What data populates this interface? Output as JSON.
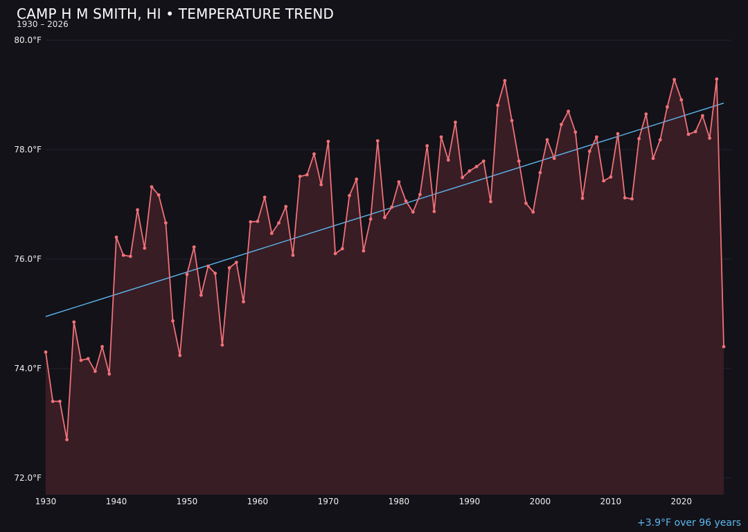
{
  "header": {
    "title": "CAMP H M SMITH, HI • TEMPERATURE TREND",
    "subtitle": "1930 – 2026"
  },
  "trend_note": "+3.9°F over 96 years",
  "colors": {
    "background": "#131218",
    "line": "#f07178",
    "area_fill": "#3a1f26",
    "trend": "#5cb8f0",
    "grid": "#24232b",
    "tick_text": "#f0f0f0"
  },
  "chart_data": {
    "type": "line",
    "title": "CAMP H M SMITH, HI • TEMPERATURE TREND",
    "subtitle": "1930 – 2026",
    "xlabel": "",
    "ylabel": "",
    "xlim": [
      1930,
      2026
    ],
    "ylim": [
      71.7,
      80.0
    ],
    "grid": true,
    "x_ticks": [
      1930,
      1940,
      1950,
      1960,
      1970,
      1980,
      1990,
      2000,
      2010,
      2020
    ],
    "y_ticks": [
      72.0,
      74.0,
      76.0,
      78.0,
      80.0
    ],
    "y_tick_labels": [
      "72.0°F",
      "74.0°F",
      "76.0°F",
      "78.0°F",
      "80.0°F"
    ],
    "series": [
      {
        "values": [
          {
            "x": 1930,
            "y": 74.3
          },
          {
            "x": 1931,
            "y": 73.4
          },
          {
            "x": 1932,
            "y": 73.4
          },
          {
            "x": 1933,
            "y": 72.7
          },
          {
            "x": 1934,
            "y": 74.85
          },
          {
            "x": 1935,
            "y": 74.15
          },
          {
            "x": 1936,
            "y": 74.18
          },
          {
            "x": 1937,
            "y": 73.95
          },
          {
            "x": 1938,
            "y": 74.4
          },
          {
            "x": 1939,
            "y": 73.9
          },
          {
            "x": 1940,
            "y": 76.4
          },
          {
            "x": 1941,
            "y": 76.07
          },
          {
            "x": 1942,
            "y": 76.05
          },
          {
            "x": 1943,
            "y": 76.9
          },
          {
            "x": 1944,
            "y": 76.2
          },
          {
            "x": 1945,
            "y": 77.32
          },
          {
            "x": 1946,
            "y": 77.17
          },
          {
            "x": 1947,
            "y": 76.66
          },
          {
            "x": 1948,
            "y": 74.87
          },
          {
            "x": 1949,
            "y": 74.24
          },
          {
            "x": 1950,
            "y": 75.72
          },
          {
            "x": 1951,
            "y": 76.22
          },
          {
            "x": 1952,
            "y": 75.34
          },
          {
            "x": 1953,
            "y": 75.87
          },
          {
            "x": 1954,
            "y": 75.74
          },
          {
            "x": 1955,
            "y": 74.43
          },
          {
            "x": 1956,
            "y": 75.84
          },
          {
            "x": 1957,
            "y": 75.94
          },
          {
            "x": 1958,
            "y": 75.22
          },
          {
            "x": 1959,
            "y": 76.68
          },
          {
            "x": 1960,
            "y": 76.69
          },
          {
            "x": 1961,
            "y": 77.13
          },
          {
            "x": 1962,
            "y": 76.47
          },
          {
            "x": 1963,
            "y": 76.66
          },
          {
            "x": 1964,
            "y": 76.96
          },
          {
            "x": 1965,
            "y": 76.07
          },
          {
            "x": 1966,
            "y": 77.51
          },
          {
            "x": 1967,
            "y": 77.54
          },
          {
            "x": 1968,
            "y": 77.92
          },
          {
            "x": 1969,
            "y": 77.36
          },
          {
            "x": 1970,
            "y": 78.15
          },
          {
            "x": 1971,
            "y": 76.1
          },
          {
            "x": 1972,
            "y": 76.19
          },
          {
            "x": 1973,
            "y": 77.16
          },
          {
            "x": 1974,
            "y": 77.46
          },
          {
            "x": 1975,
            "y": 76.15
          },
          {
            "x": 1976,
            "y": 76.73
          },
          {
            "x": 1977,
            "y": 78.16
          },
          {
            "x": 1978,
            "y": 76.76
          },
          {
            "x": 1979,
            "y": 76.95
          },
          {
            "x": 1980,
            "y": 77.41
          },
          {
            "x": 1981,
            "y": 77.06
          },
          {
            "x": 1982,
            "y": 76.86
          },
          {
            "x": 1983,
            "y": 77.18
          },
          {
            "x": 1984,
            "y": 78.07
          },
          {
            "x": 1985,
            "y": 76.87
          },
          {
            "x": 1986,
            "y": 78.23
          },
          {
            "x": 1987,
            "y": 77.81
          },
          {
            "x": 1988,
            "y": 78.5
          },
          {
            "x": 1989,
            "y": 77.49
          },
          {
            "x": 1990,
            "y": 77.61
          },
          {
            "x": 1991,
            "y": 77.69
          },
          {
            "x": 1992,
            "y": 77.79
          },
          {
            "x": 1993,
            "y": 77.05
          },
          {
            "x": 1994,
            "y": 78.81
          },
          {
            "x": 1995,
            "y": 79.26
          },
          {
            "x": 1996,
            "y": 78.53
          },
          {
            "x": 1997,
            "y": 77.79
          },
          {
            "x": 1998,
            "y": 77.02
          },
          {
            "x": 1999,
            "y": 76.86
          },
          {
            "x": 2000,
            "y": 77.58
          },
          {
            "x": 2001,
            "y": 78.18
          },
          {
            "x": 2002,
            "y": 77.84
          },
          {
            "x": 2003,
            "y": 78.46
          },
          {
            "x": 2004,
            "y": 78.7
          },
          {
            "x": 2005,
            "y": 78.32
          },
          {
            "x": 2006,
            "y": 77.11
          },
          {
            "x": 2007,
            "y": 77.97
          },
          {
            "x": 2008,
            "y": 78.23
          },
          {
            "x": 2009,
            "y": 77.43
          },
          {
            "x": 2010,
            "y": 77.5
          },
          {
            "x": 2011,
            "y": 78.29
          },
          {
            "x": 2012,
            "y": 77.12
          },
          {
            "x": 2013,
            "y": 77.1
          },
          {
            "x": 2014,
            "y": 78.2
          },
          {
            "x": 2015,
            "y": 78.65
          },
          {
            "x": 2016,
            "y": 77.84
          },
          {
            "x": 2017,
            "y": 78.18
          },
          {
            "x": 2018,
            "y": 78.78
          },
          {
            "x": 2019,
            "y": 79.28
          },
          {
            "x": 2020,
            "y": 78.91
          },
          {
            "x": 2021,
            "y": 78.28
          },
          {
            "x": 2022,
            "y": 78.33
          },
          {
            "x": 2023,
            "y": 78.62
          },
          {
            "x": 2024,
            "y": 78.21
          },
          {
            "x": 2025,
            "y": 79.29
          },
          {
            "x": 2026,
            "y": 74.4
          }
        ]
      }
    ],
    "trend_line": {
      "start": {
        "x": 1930,
        "y": 74.95
      },
      "end": {
        "x": 2026,
        "y": 78.85
      }
    }
  }
}
